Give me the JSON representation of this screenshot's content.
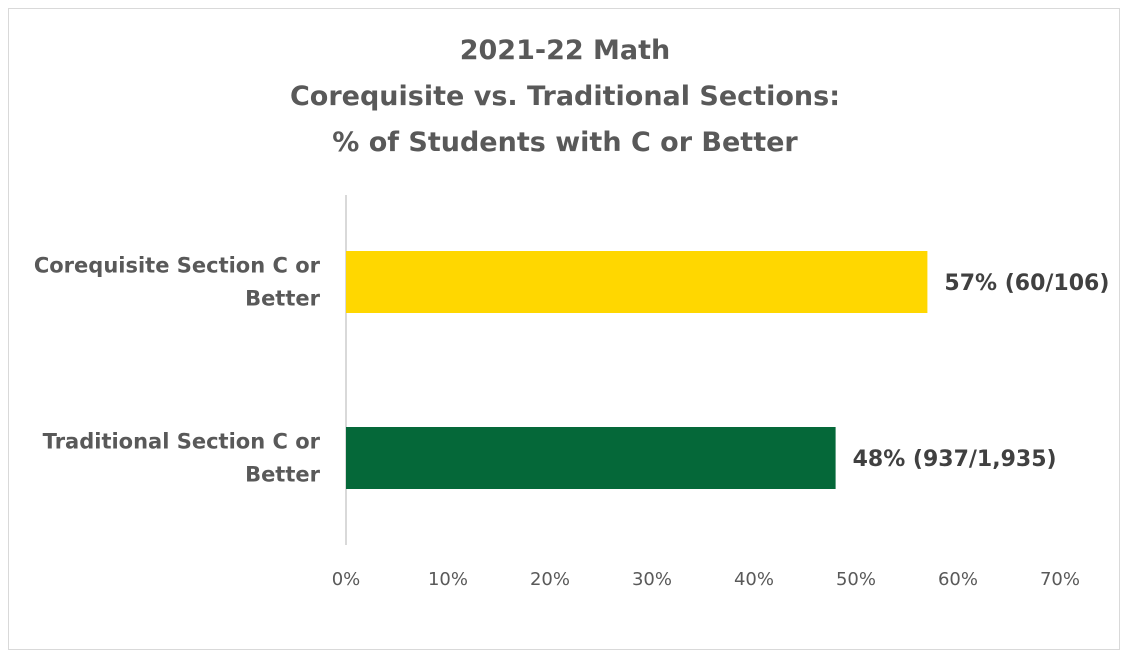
{
  "chart_data": {
    "type": "bar",
    "orientation": "horizontal",
    "title": [
      "2021-22 Math",
      "Corequisite vs. Traditional Sections:",
      "% of Students with C or Better"
    ],
    "categories": [
      [
        "Corequisite Section C or",
        "Better"
      ],
      [
        "Traditional Section C or",
        "Better"
      ]
    ],
    "values": [
      57,
      48
    ],
    "data_labels": [
      "57% (60/106)",
      "48% (937/1,935)"
    ],
    "bar_colors": [
      "#FFD700",
      "#056839"
    ],
    "xlim": [
      0,
      70
    ],
    "ticks": [
      0,
      10,
      20,
      30,
      40,
      50,
      60,
      70
    ],
    "tick_labels": [
      "0%",
      "10%",
      "20%",
      "30%",
      "40%",
      "50%",
      "60%",
      "70%"
    ],
    "grid": false,
    "legend": "none"
  }
}
